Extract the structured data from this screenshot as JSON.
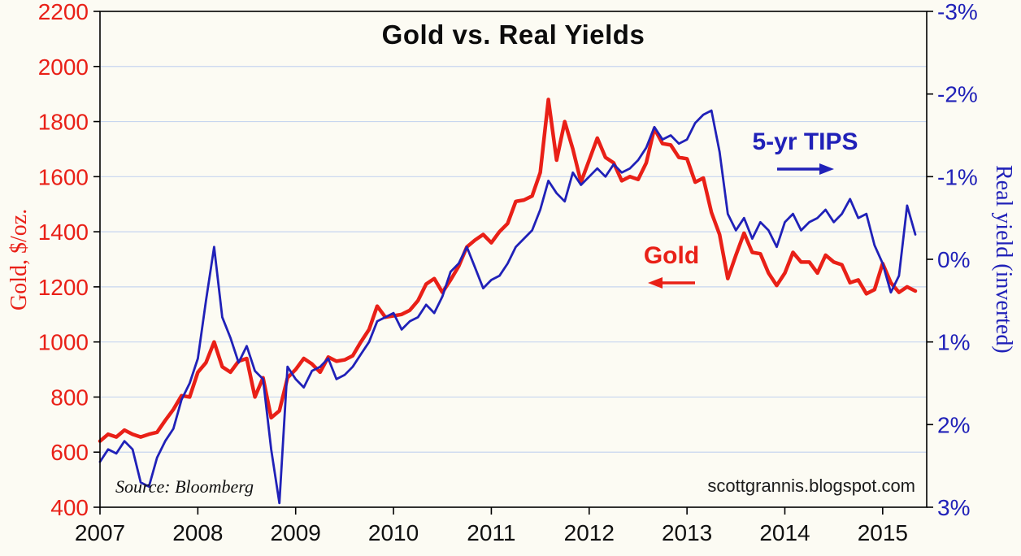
{
  "page": {
    "background_color": "#fcfbf3",
    "source_note": "Source: Bloomberg",
    "watermark": "scottgrannis.blogspot.com"
  },
  "chart_data": {
    "type": "line",
    "title": "Gold vs. Real Yields",
    "x_unit": "year",
    "x_range": [
      2007,
      2015.45
    ],
    "x_ticks": [
      {
        "v": 2007,
        "label": "2007"
      },
      {
        "v": 2008,
        "label": "2008"
      },
      {
        "v": 2009,
        "label": "2009"
      },
      {
        "v": 2010,
        "label": "2010"
      },
      {
        "v": 2011,
        "label": "2011"
      },
      {
        "v": 2012,
        "label": "2012"
      },
      {
        "v": 2013,
        "label": "2013"
      },
      {
        "v": 2014,
        "label": "2014"
      },
      {
        "v": 2015,
        "label": "2015"
      }
    ],
    "left_axis": {
      "label": "Gold, $/oz.",
      "color": "#e92017",
      "range": [
        400,
        2200
      ],
      "ticks": [
        {
          "v": 400,
          "label": "400"
        },
        {
          "v": 600,
          "label": "600"
        },
        {
          "v": 800,
          "label": "800"
        },
        {
          "v": 1000,
          "label": "1000"
        },
        {
          "v": 1200,
          "label": "1200"
        },
        {
          "v": 1400,
          "label": "1400"
        },
        {
          "v": 1600,
          "label": "1600"
        },
        {
          "v": 1800,
          "label": "1800"
        },
        {
          "v": 2000,
          "label": "2000"
        },
        {
          "v": 2200,
          "label": "2200"
        }
      ]
    },
    "right_axis": {
      "label": "Real yield (inverted)",
      "color": "#2021b8",
      "inverted": true,
      "range": [
        -3,
        3
      ],
      "ticks": [
        {
          "v": -3,
          "label": "-3%"
        },
        {
          "v": -2,
          "label": "-2%"
        },
        {
          "v": -1,
          "label": "-1%"
        },
        {
          "v": 0,
          "label": "0%"
        },
        {
          "v": 1,
          "label": "1%"
        },
        {
          "v": 2,
          "label": "2%"
        },
        {
          "v": 3,
          "label": "3%"
        }
      ]
    },
    "gridlines": {
      "color": "#c7d6ef",
      "horizontal_at_left_ticks": true
    },
    "annotations": [
      {
        "text": "5-yr TIPS",
        "color": "#2021b8",
        "arrow": "right"
      },
      {
        "text": "Gold",
        "color": "#e92017",
        "arrow": "left"
      }
    ],
    "series": [
      {
        "name": "Gold",
        "axis": "left",
        "color": "#e92017",
        "width": 4.5,
        "start": 2007,
        "interval_months": 1,
        "values": [
          640,
          665,
          655,
          680,
          665,
          655,
          665,
          672,
          715,
          755,
          805,
          800,
          890,
          925,
          1000,
          910,
          890,
          930,
          940,
          800,
          870,
          725,
          750,
          870,
          900,
          940,
          920,
          890,
          945,
          930,
          935,
          950,
          1000,
          1045,
          1130,
          1090,
          1095,
          1100,
          1115,
          1150,
          1210,
          1230,
          1180,
          1225,
          1275,
          1345,
          1370,
          1390,
          1360,
          1400,
          1430,
          1510,
          1515,
          1530,
          1615,
          1880,
          1660,
          1800,
          1700,
          1580,
          1660,
          1740,
          1670,
          1650,
          1585,
          1600,
          1590,
          1650,
          1775,
          1720,
          1715,
          1670,
          1665,
          1580,
          1595,
          1470,
          1390,
          1230,
          1315,
          1395,
          1325,
          1320,
          1250,
          1205,
          1250,
          1325,
          1290,
          1290,
          1250,
          1315,
          1290,
          1280,
          1215,
          1225,
          1175,
          1190,
          1285,
          1215,
          1180,
          1200,
          1185
        ]
      },
      {
        "name": "5-yr TIPS",
        "axis": "right",
        "color": "#2021b8",
        "width": 2.8,
        "start": 2007,
        "interval_months": 1,
        "values": [
          2.45,
          2.3,
          2.35,
          2.2,
          2.3,
          2.7,
          2.75,
          2.4,
          2.2,
          2.05,
          1.7,
          1.5,
          1.2,
          0.5,
          -0.15,
          0.7,
          0.95,
          1.25,
          1.05,
          1.35,
          1.45,
          2.3,
          2.95,
          1.3,
          1.45,
          1.55,
          1.35,
          1.3,
          1.2,
          1.45,
          1.4,
          1.3,
          1.15,
          1.0,
          0.75,
          0.7,
          0.65,
          0.85,
          0.75,
          0.7,
          0.55,
          0.65,
          0.45,
          0.15,
          0.05,
          -0.15,
          0.1,
          0.35,
          0.25,
          0.2,
          0.05,
          -0.15,
          -0.25,
          -0.35,
          -0.6,
          -0.95,
          -0.8,
          -0.7,
          -1.05,
          -0.9,
          -1.0,
          -1.1,
          -1.0,
          -1.15,
          -1.05,
          -1.1,
          -1.2,
          -1.35,
          -1.6,
          -1.45,
          -1.5,
          -1.4,
          -1.45,
          -1.65,
          -1.75,
          -1.8,
          -1.3,
          -0.55,
          -0.35,
          -0.5,
          -0.25,
          -0.45,
          -0.35,
          -0.15,
          -0.45,
          -0.55,
          -0.35,
          -0.45,
          -0.5,
          -0.6,
          -0.45,
          -0.55,
          -0.73,
          -0.5,
          -0.55,
          -0.17,
          0.05,
          0.4,
          0.2,
          -0.65,
          -0.3
        ]
      }
    ]
  }
}
